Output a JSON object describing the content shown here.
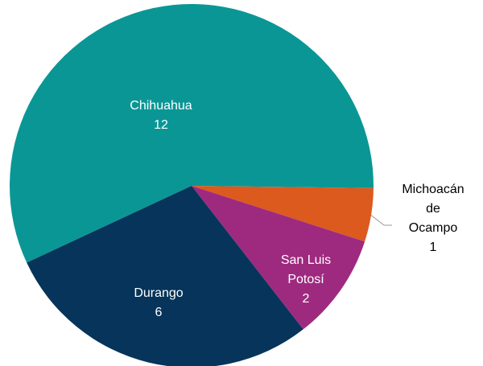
{
  "chart_data": {
    "type": "pie",
    "categories": [
      "Chihuahua",
      "Michoacán de Ocampo",
      "San Luis Potosí",
      "Durango"
    ],
    "values": [
      12,
      1,
      2,
      6
    ],
    "colors": [
      "#0b9696",
      "#dc5a1e",
      "#9e2a7f",
      "#06345a"
    ],
    "label_colors": [
      "#ffffff",
      "#000000",
      "#ffffff",
      "#ffffff"
    ]
  }
}
